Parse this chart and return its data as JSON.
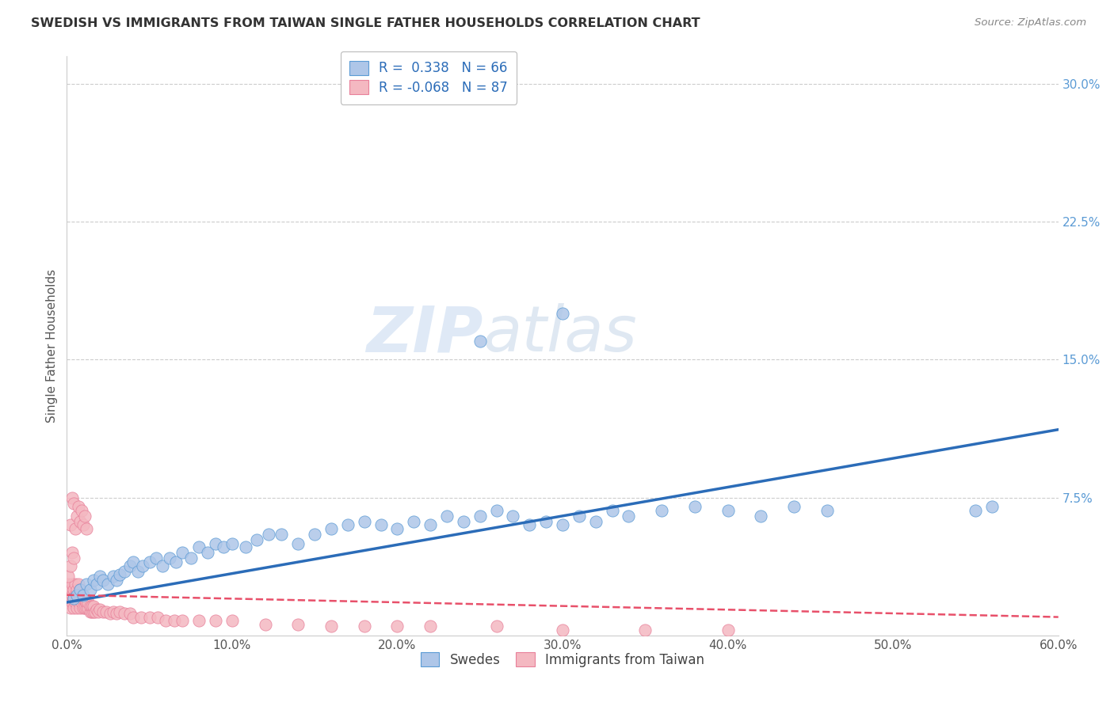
{
  "title": "SWEDISH VS IMMIGRANTS FROM TAIWAN SINGLE FATHER HOUSEHOLDS CORRELATION CHART",
  "source": "Source: ZipAtlas.com",
  "ylabel": "Single Father Households",
  "xlim": [
    0,
    0.6
  ],
  "ylim": [
    0,
    0.315
  ],
  "xtick_vals": [
    0.0,
    0.1,
    0.2,
    0.3,
    0.4,
    0.5,
    0.6
  ],
  "xticklabels": [
    "0.0%",
    "10.0%",
    "20.0%",
    "30.0%",
    "40.0%",
    "50.0%",
    "60.0%"
  ],
  "ytick_right_vals": [
    0.075,
    0.15,
    0.225,
    0.3
  ],
  "ytick_right_labels": [
    "7.5%",
    "15.0%",
    "22.5%",
    "30.0%"
  ],
  "grid_color": "#cccccc",
  "background_color": "#ffffff",
  "swedes_color": "#aec6e8",
  "swedes_edge_color": "#5b9bd5",
  "taiwan_color": "#f4b8c1",
  "taiwan_edge_color": "#e8809a",
  "swedes_line_color": "#2b6cb8",
  "taiwan_line_color": "#e8506a",
  "legend_R_swedes": "0.338",
  "legend_N_swedes": "66",
  "legend_R_taiwan": "-0.068",
  "legend_N_taiwan": "87",
  "legend_label_swedes": "Swedes",
  "legend_label_taiwan": "Immigrants from Taiwan",
  "watermark_zip": "ZIP",
  "watermark_atlas": "atlas",
  "swedes_x": [
    0.004,
    0.006,
    0.008,
    0.01,
    0.012,
    0.014,
    0.016,
    0.018,
    0.02,
    0.022,
    0.025,
    0.028,
    0.03,
    0.032,
    0.035,
    0.038,
    0.04,
    0.043,
    0.046,
    0.05,
    0.054,
    0.058,
    0.062,
    0.066,
    0.07,
    0.075,
    0.08,
    0.085,
    0.09,
    0.095,
    0.1,
    0.108,
    0.115,
    0.122,
    0.13,
    0.14,
    0.15,
    0.16,
    0.17,
    0.18,
    0.19,
    0.2,
    0.21,
    0.22,
    0.23,
    0.24,
    0.25,
    0.26,
    0.27,
    0.28,
    0.29,
    0.3,
    0.31,
    0.32,
    0.33,
    0.34,
    0.36,
    0.38,
    0.4,
    0.42,
    0.44,
    0.46,
    0.25,
    0.3,
    0.55,
    0.56
  ],
  "swedes_y": [
    0.02,
    0.022,
    0.025,
    0.022,
    0.028,
    0.025,
    0.03,
    0.028,
    0.032,
    0.03,
    0.028,
    0.032,
    0.03,
    0.033,
    0.035,
    0.038,
    0.04,
    0.035,
    0.038,
    0.04,
    0.042,
    0.038,
    0.042,
    0.04,
    0.045,
    0.042,
    0.048,
    0.045,
    0.05,
    0.048,
    0.05,
    0.048,
    0.052,
    0.055,
    0.055,
    0.05,
    0.055,
    0.058,
    0.06,
    0.062,
    0.06,
    0.058,
    0.062,
    0.06,
    0.065,
    0.062,
    0.065,
    0.068,
    0.065,
    0.06,
    0.062,
    0.06,
    0.065,
    0.062,
    0.068,
    0.065,
    0.068,
    0.07,
    0.068,
    0.065,
    0.07,
    0.068,
    0.16,
    0.175,
    0.068,
    0.07
  ],
  "taiwan_x": [
    0.001,
    0.001,
    0.001,
    0.002,
    0.002,
    0.002,
    0.003,
    0.003,
    0.003,
    0.004,
    0.004,
    0.004,
    0.005,
    0.005,
    0.005,
    0.006,
    0.006,
    0.006,
    0.007,
    0.007,
    0.007,
    0.008,
    0.008,
    0.008,
    0.009,
    0.009,
    0.01,
    0.01,
    0.011,
    0.011,
    0.012,
    0.012,
    0.013,
    0.013,
    0.014,
    0.014,
    0.015,
    0.015,
    0.016,
    0.016,
    0.017,
    0.018,
    0.019,
    0.02,
    0.022,
    0.024,
    0.026,
    0.028,
    0.03,
    0.032,
    0.035,
    0.038,
    0.04,
    0.045,
    0.05,
    0.055,
    0.06,
    0.065,
    0.07,
    0.08,
    0.09,
    0.1,
    0.12,
    0.14,
    0.16,
    0.18,
    0.2,
    0.22,
    0.26,
    0.3,
    0.35,
    0.4,
    0.002,
    0.003,
    0.004,
    0.005,
    0.006,
    0.007,
    0.008,
    0.009,
    0.01,
    0.011,
    0.012,
    0.001,
    0.002,
    0.003,
    0.004
  ],
  "taiwan_y": [
    0.018,
    0.022,
    0.028,
    0.015,
    0.02,
    0.025,
    0.018,
    0.022,
    0.028,
    0.015,
    0.02,
    0.025,
    0.018,
    0.022,
    0.028,
    0.015,
    0.02,
    0.025,
    0.018,
    0.022,
    0.028,
    0.015,
    0.02,
    0.025,
    0.018,
    0.022,
    0.015,
    0.02,
    0.015,
    0.02,
    0.015,
    0.018,
    0.015,
    0.018,
    0.013,
    0.016,
    0.013,
    0.016,
    0.013,
    0.016,
    0.013,
    0.014,
    0.013,
    0.014,
    0.013,
    0.013,
    0.012,
    0.013,
    0.012,
    0.013,
    0.012,
    0.012,
    0.01,
    0.01,
    0.01,
    0.01,
    0.008,
    0.008,
    0.008,
    0.008,
    0.008,
    0.008,
    0.006,
    0.006,
    0.005,
    0.005,
    0.005,
    0.005,
    0.005,
    0.003,
    0.003,
    0.003,
    0.06,
    0.075,
    0.072,
    0.058,
    0.065,
    0.07,
    0.062,
    0.068,
    0.06,
    0.065,
    0.058,
    0.032,
    0.038,
    0.045,
    0.042
  ],
  "swedes_trendline_x": [
    0.0,
    0.6
  ],
  "swedes_trendline_y": [
    0.018,
    0.112
  ],
  "taiwan_trendline_x": [
    0.0,
    0.6
  ],
  "taiwan_trendline_y": [
    0.022,
    0.01
  ]
}
